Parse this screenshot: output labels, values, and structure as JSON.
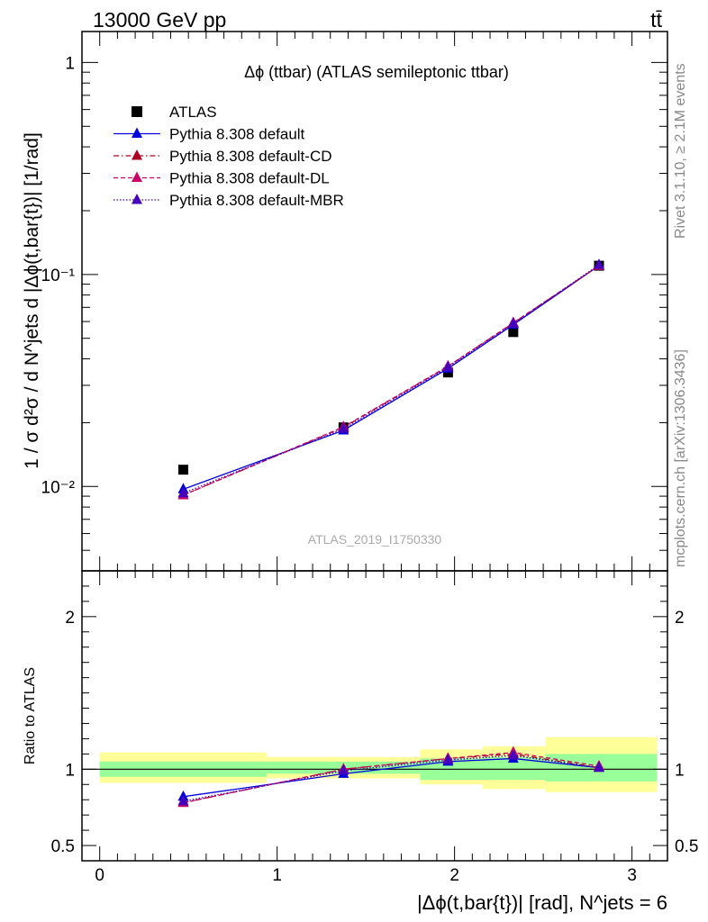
{
  "header": {
    "energy_label": "13000 GeV pp",
    "process_label": "tt̄",
    "side_label_top": "Rivet 3.1.10, ≥ 2.1M events",
    "side_label_bottom": "mcplots.cern.ch [arXiv:1306.3436]"
  },
  "chart_data": [
    {
      "type": "line",
      "title": "Δϕ (ttbar) (ATLAS semileptonic ttbar)",
      "watermark": "ATLAS_2019_I1750330",
      "ylabel": "1 / σ d²σ / d N^jets d |Δϕ(t,bar{t})| [1/rad]",
      "yscale": "log",
      "xlim": [
        -0.1,
        3.2
      ],
      "ylim": [
        0.004,
        1.4
      ],
      "y_ticks": [
        {
          "value": 0.01,
          "label": "10⁻²"
        },
        {
          "value": 0.1,
          "label": "10⁻¹"
        },
        {
          "value": 1,
          "label": "1"
        }
      ],
      "legend_position": "top-left",
      "x": [
        0.471,
        1.374,
        1.963,
        2.331,
        2.814
      ],
      "series": [
        {
          "name": "ATLAS",
          "color": "#000000",
          "marker": "square",
          "line": "none",
          "values": [
            0.012,
            0.019,
            0.0345,
            0.0535,
            0.11
          ]
        },
        {
          "name": "Pythia 8.308 default",
          "color": "#0000dd",
          "marker": "triangle",
          "line": "solid",
          "values": [
            0.0097,
            0.0184,
            0.036,
            0.058,
            0.11
          ]
        },
        {
          "name": "Pythia 8.308 default-CD",
          "color": "#aa0022",
          "marker": "triangle",
          "line": "dashdot",
          "values": [
            0.0091,
            0.019,
            0.0368,
            0.059,
            0.11
          ]
        },
        {
          "name": "Pythia 8.308 default-DL",
          "color": "#cc0066",
          "marker": "triangle",
          "line": "dashed",
          "values": [
            0.0091,
            0.0191,
            0.0369,
            0.0592,
            0.11
          ]
        },
        {
          "name": "Pythia 8.308 default-MBR",
          "color": "#4400bb",
          "marker": "triangle",
          "line": "dotted",
          "values": [
            0.0093,
            0.0187,
            0.0365,
            0.0585,
            0.111
          ]
        }
      ]
    },
    {
      "type": "line",
      "xlabel": "|Δϕ(t,bar{t})| [rad], N^jets = 6",
      "ylabel": "Ratio to ATLAS",
      "xlim": [
        -0.1,
        3.2
      ],
      "ylim": [
        0.4,
        2.3
      ],
      "x_ticks": [
        0,
        1,
        2,
        3
      ],
      "y_ticks": [
        {
          "value": 0.5,
          "label": "0.5"
        },
        {
          "value": 1,
          "label": "1"
        },
        {
          "value": 2,
          "label": "2"
        }
      ],
      "x": [
        0.471,
        1.374,
        1.963,
        2.331,
        2.814
      ],
      "uncertainty_bands": {
        "bin_edges": [
          0,
          0.942,
          1.806,
          2.159,
          2.513,
          3.1416
        ],
        "total_low": [
          0.91,
          0.94,
          0.9,
          0.87,
          0.85
        ],
        "total_high": [
          1.11,
          1.08,
          1.13,
          1.15,
          1.21
        ],
        "stat_low": [
          0.95,
          0.97,
          0.93,
          0.93,
          0.92
        ],
        "stat_high": [
          1.05,
          1.05,
          1.07,
          1.08,
          1.1
        ],
        "total_color": "#ffff99",
        "stat_color": "#99ff99"
      },
      "series": [
        {
          "name": "Pythia 8.308 default",
          "color": "#0000dd",
          "line": "solid",
          "values": [
            0.82,
            0.97,
            1.05,
            1.07,
            1.01
          ]
        },
        {
          "name": "Pythia 8.308 default-CD",
          "color": "#aa0022",
          "line": "dashdot",
          "values": [
            0.78,
            1.0,
            1.07,
            1.1,
            1.01
          ]
        },
        {
          "name": "Pythia 8.308 default-DL",
          "color": "#cc0066",
          "line": "dashed",
          "values": [
            0.78,
            1.0,
            1.07,
            1.11,
            1.02
          ]
        },
        {
          "name": "Pythia 8.308 default-MBR",
          "color": "#4400bb",
          "line": "dotted",
          "values": [
            0.79,
            0.99,
            1.06,
            1.09,
            1.01
          ]
        }
      ]
    }
  ]
}
